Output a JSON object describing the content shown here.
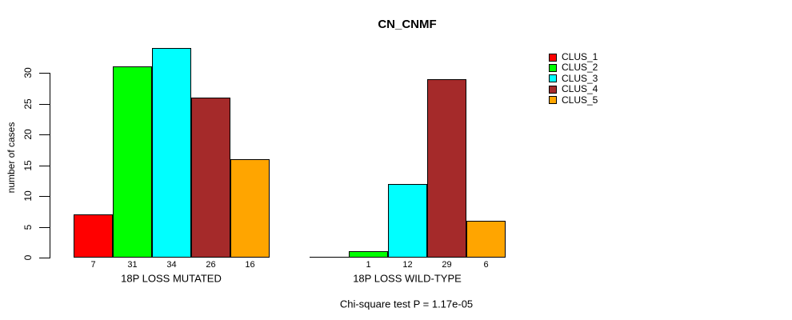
{
  "chart_data": {
    "type": "bar",
    "title": "CN_CNMF",
    "ylabel": "number of cases",
    "xlabel": "",
    "footnote": "Chi-square test P = 1.17e-05",
    "ylim": [
      0,
      30
    ],
    "yticks": [
      0,
      5,
      10,
      15,
      20,
      25,
      30
    ],
    "grid": false,
    "legend_position": "right",
    "colors": [
      "#FF0000",
      "#00FF00",
      "#00FFFF",
      "#A52A2A",
      "#FFA500"
    ],
    "legend": [
      {
        "label": "CLUS_1",
        "color": "#FF0000"
      },
      {
        "label": "CLUS_2",
        "color": "#00FF00"
      },
      {
        "label": "CLUS_3",
        "color": "#00FFFF"
      },
      {
        "label": "CLUS_4",
        "color": "#A52A2A"
      },
      {
        "label": "CLUS_5",
        "color": "#FFA500"
      }
    ],
    "groups": [
      {
        "name": "18P LOSS MUTATED",
        "values": [
          7,
          31,
          34,
          26,
          16
        ],
        "bar_labels": [
          "7",
          "31",
          "34",
          "26",
          "16"
        ]
      },
      {
        "name": "18P LOSS WILD-TYPE",
        "values": [
          0,
          1,
          12,
          29,
          6
        ],
        "bar_labels": [
          "",
          "1",
          "12",
          "29",
          "6"
        ]
      }
    ]
  }
}
